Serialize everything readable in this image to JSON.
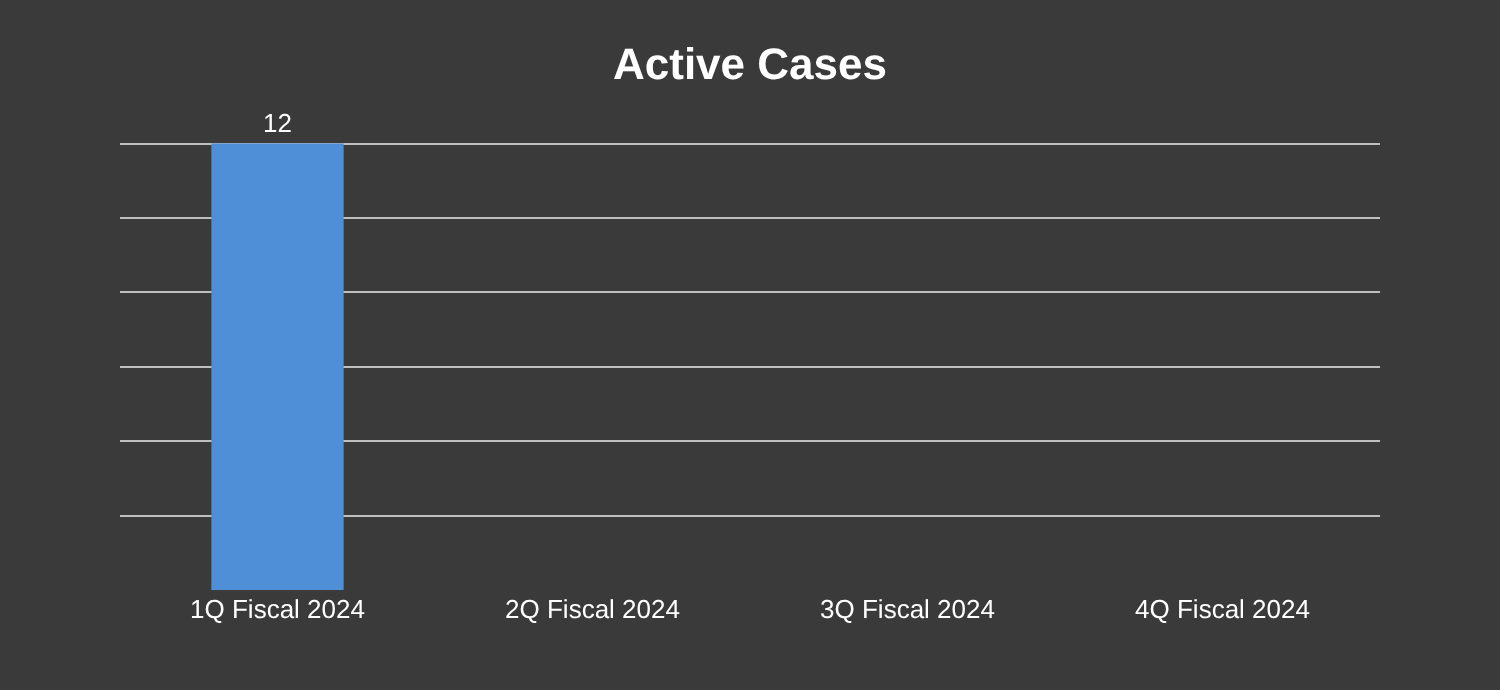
{
  "chart_data": {
    "type": "bar",
    "title": "Active Cases",
    "categories": [
      "1Q Fiscal 2024",
      "2Q Fiscal 2024",
      "3Q Fiscal 2024",
      "4Q Fiscal 2024"
    ],
    "series": [
      {
        "color": "#4f8fd8",
        "values": [
          12,
          null,
          null,
          null
        ]
      }
    ],
    "data_labels": true,
    "grid": "y",
    "legend": false,
    "tick_labels": "x"
  }
}
